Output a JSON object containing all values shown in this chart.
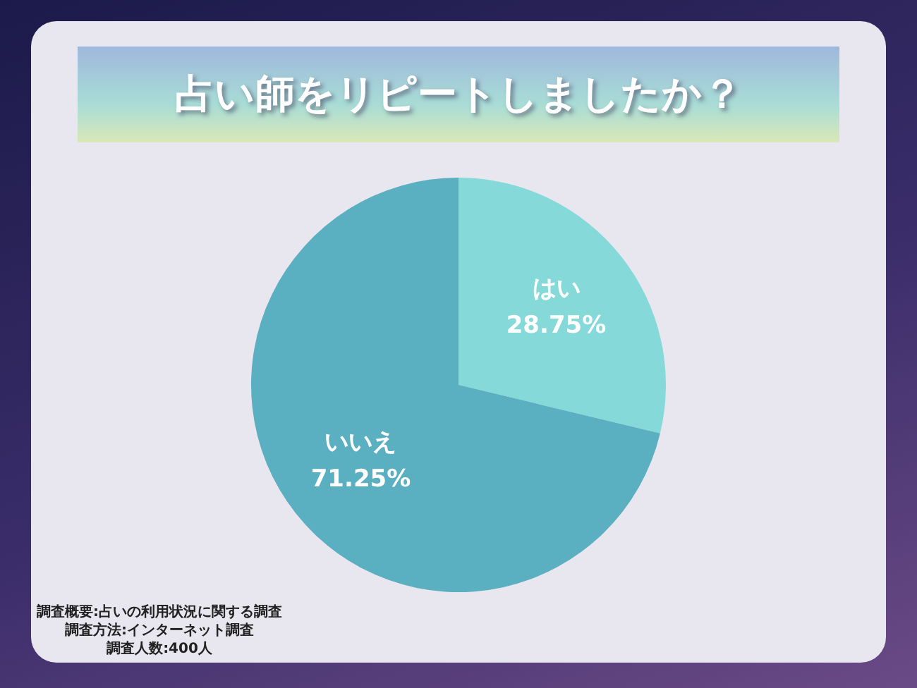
{
  "chart_data": {
    "type": "pie",
    "title": "占い師をリピートしましたか？",
    "categories": [
      "はい",
      "いいえ"
    ],
    "values": [
      28.75,
      71.25
    ],
    "colors": [
      "#86d9d9",
      "#5aafc0"
    ],
    "value_labels": [
      "28.75%",
      "71.25%"
    ],
    "legend": false,
    "annotations": [
      "調査概要:占いの利用状況に関する調査",
      "調査方法:インターネット調査",
      "調査人数:400人"
    ]
  }
}
